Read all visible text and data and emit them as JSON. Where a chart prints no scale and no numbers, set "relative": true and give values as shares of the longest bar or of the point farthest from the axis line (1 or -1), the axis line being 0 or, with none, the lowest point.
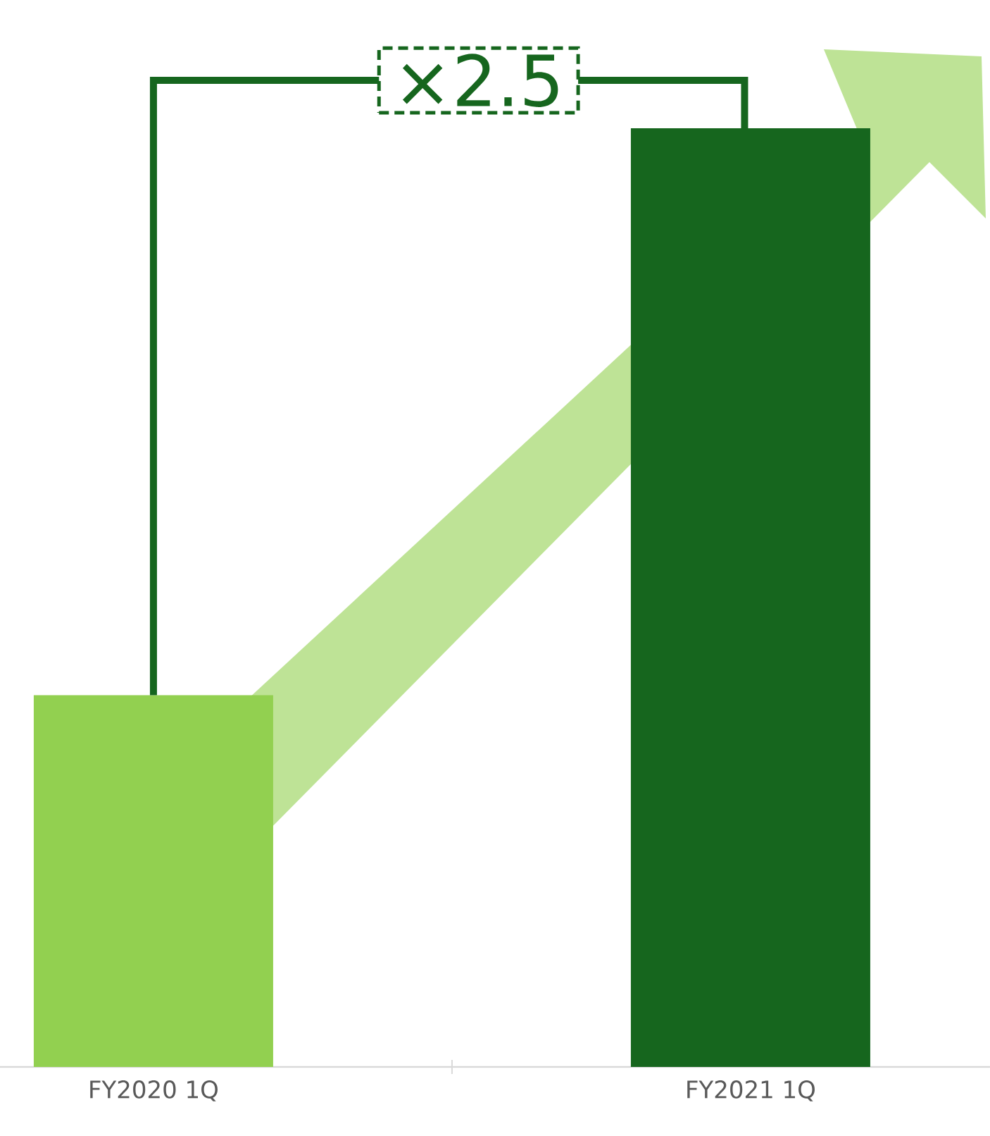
{
  "chart_data": {
    "type": "bar",
    "relative": true,
    "categories": [
      "FY2020 1Q",
      "FY2021 1Q"
    ],
    "values": [
      0.396,
      1
    ],
    "colors": [
      "#92d050",
      "#16661e"
    ],
    "annotations": [
      "×2.5"
    ]
  }
}
